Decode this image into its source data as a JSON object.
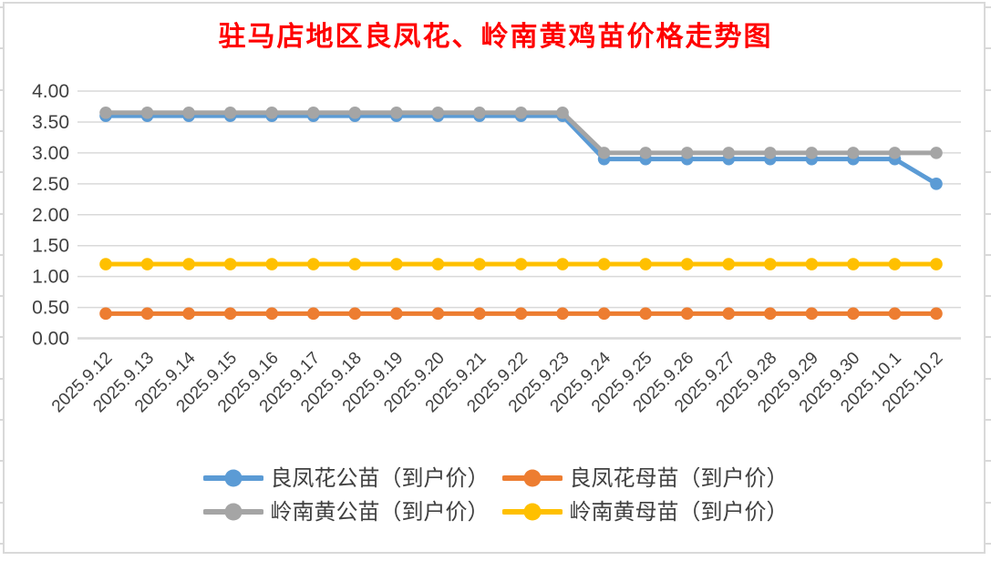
{
  "title": {
    "text": "驻马店地区良凤花、岭南黄鸡苗价格走势图",
    "color": "#FF0000"
  },
  "chart_data": {
    "type": "line",
    "title": "驻马店地区良凤花、岭南黄鸡苗价格走势图",
    "categories": [
      "2025.9.12",
      "2025.9.13",
      "2025.9.14",
      "2025.9.15",
      "2025.9.16",
      "2025.9.17",
      "2025.9.18",
      "2025.9.19",
      "2025.9.20",
      "2025.9.21",
      "2025.9.22",
      "2025.9.23",
      "2025.9.24",
      "2025.9.25",
      "2025.9.26",
      "2025.9.27",
      "2025.9.28",
      "2025.9.29",
      "2025.9.30",
      "2025.10.1",
      "2025.10.2"
    ],
    "series": [
      {
        "name": "良凤花公苗（到户价）",
        "color": "#5B9BD5",
        "values": [
          3.6,
          3.6,
          3.6,
          3.6,
          3.6,
          3.6,
          3.6,
          3.6,
          3.6,
          3.6,
          3.6,
          3.6,
          2.9,
          2.9,
          2.9,
          2.9,
          2.9,
          2.9,
          2.9,
          2.9,
          2.5
        ]
      },
      {
        "name": "良凤花母苗（到户价）",
        "color": "#ED7D31",
        "values": [
          0.4,
          0.4,
          0.4,
          0.4,
          0.4,
          0.4,
          0.4,
          0.4,
          0.4,
          0.4,
          0.4,
          0.4,
          0.4,
          0.4,
          0.4,
          0.4,
          0.4,
          0.4,
          0.4,
          0.4,
          0.4
        ]
      },
      {
        "name": "岭南黄公苗（到户价）",
        "color": "#A5A5A5",
        "values": [
          3.65,
          3.65,
          3.65,
          3.65,
          3.65,
          3.65,
          3.65,
          3.65,
          3.65,
          3.65,
          3.65,
          3.65,
          3.0,
          3.0,
          3.0,
          3.0,
          3.0,
          3.0,
          3.0,
          3.0,
          3.0
        ]
      },
      {
        "name": "岭南黄母苗（到户价）",
        "color": "#FFC000",
        "values": [
          1.2,
          1.2,
          1.2,
          1.2,
          1.2,
          1.2,
          1.2,
          1.2,
          1.2,
          1.2,
          1.2,
          1.2,
          1.2,
          1.2,
          1.2,
          1.2,
          1.2,
          1.2,
          1.2,
          1.2,
          1.2
        ]
      }
    ],
    "xlabel": "",
    "ylabel": "",
    "ylim": [
      0,
      4
    ],
    "ytick_step": 0.5,
    "ytick_labels": [
      "0.00",
      "0.50",
      "1.00",
      "1.50",
      "2.00",
      "2.50",
      "3.00",
      "3.50",
      "4.00"
    ],
    "grid": "horizontal",
    "gridline_color": "#D9D9D9",
    "axis_label_color": "#404040",
    "x_label_rotation_deg": 45,
    "legend_position": "bottom",
    "legend_columns": 2
  }
}
